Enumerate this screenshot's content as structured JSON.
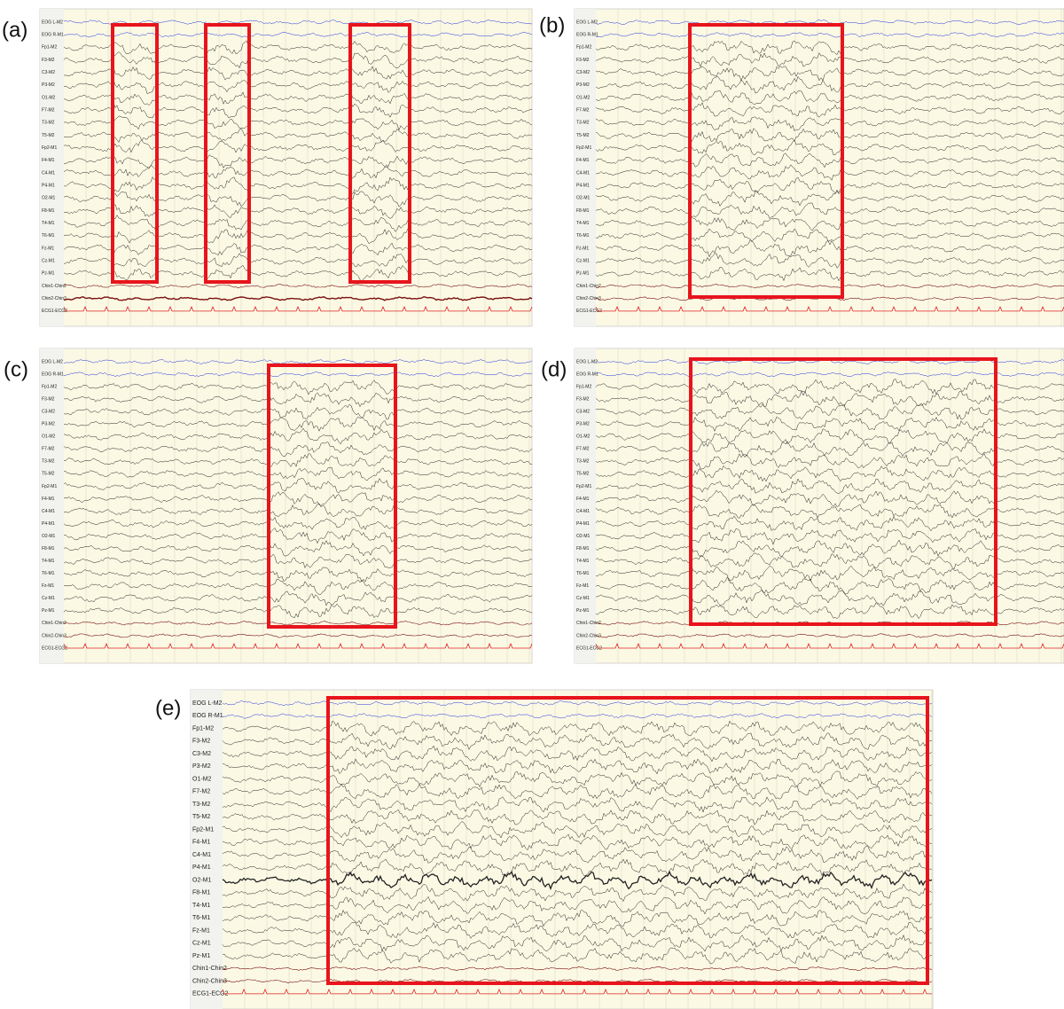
{
  "panels": [
    {
      "label": "(a)"
    },
    {
      "label": "(b)"
    },
    {
      "label": "(c)"
    },
    {
      "label": "(d)"
    },
    {
      "label": "(e)"
    }
  ],
  "channels": [
    "EOG L-M2",
    "EOG R-M1",
    "Fp1-M2",
    "F3-M2",
    "C3-M2",
    "P3-M2",
    "O1-M2",
    "F7-M2",
    "T3-M2",
    "T5-M2",
    "Fp2-M1",
    "F4-M1",
    "C4-M1",
    "P4-M1",
    "O2-M1",
    "F8-M1",
    "T4-M1",
    "T6-M1",
    "Fz-M1",
    "Cz-M1",
    "Pz-M1",
    "Chin1-Chin2",
    "Chin2-Chin3",
    "ECG1-ECG2"
  ]
}
